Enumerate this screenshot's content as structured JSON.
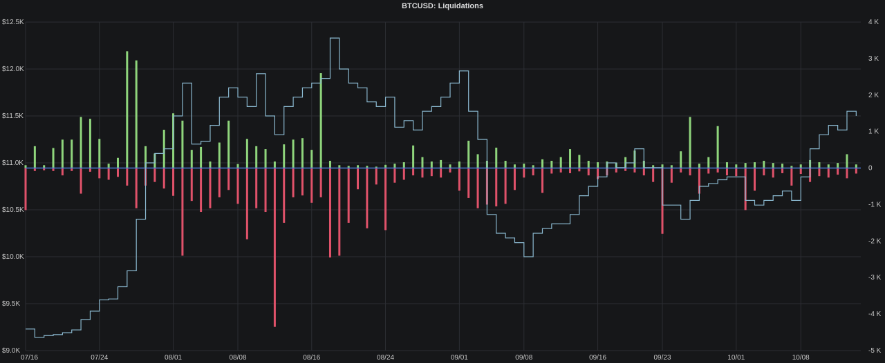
{
  "chart_data": {
    "type": "bar",
    "title": "BTCUSD: Liquidations",
    "x_tick_labels": [
      "07/16",
      "07/24",
      "08/01",
      "08/08",
      "08/16",
      "08/24",
      "09/01",
      "09/08",
      "09/16",
      "09/23",
      "10/01",
      "10/08"
    ],
    "y_left": {
      "range": [
        9000,
        12500
      ],
      "ticks": [
        9000,
        9500,
        10000,
        10500,
        11000,
        11500,
        12000,
        12500
      ],
      "tick_labels": [
        "$9.0K",
        "$9.5K",
        "$10.0K",
        "$10.5K",
        "$11.0K",
        "$11.5K",
        "$12.0K",
        "$12.5K"
      ]
    },
    "y_right": {
      "range": [
        -5000,
        4000
      ],
      "ticks": [
        -5000,
        -4000,
        -3000,
        -2000,
        -1000,
        0,
        1000,
        2000,
        3000,
        4000
      ],
      "tick_labels": [
        "-5 K",
        "-4 K",
        "-3 K",
        "-2 K",
        "-1 K",
        "0",
        "1 K",
        "2 K",
        "3 K",
        "4 K"
      ]
    },
    "grid": true,
    "colors": {
      "price": "#8ab8cf",
      "long": "#e0526a",
      "short": "#8fd57c",
      "baseline": "#4a78d6"
    },
    "series": [
      {
        "name": "",
        "axis": "left",
        "kind": "step-line",
        "color": "#8ab8cf",
        "points": [
          [
            "07/16",
            9230
          ],
          [
            "07/17",
            9140
          ],
          [
            "07/18",
            9160
          ],
          [
            "07/19",
            9170
          ],
          [
            "07/20",
            9190
          ],
          [
            "07/21",
            9220
          ],
          [
            "07/22",
            9330
          ],
          [
            "07/23",
            9420
          ],
          [
            "07/24",
            9540
          ],
          [
            "07/25",
            9550
          ],
          [
            "07/26",
            9680
          ],
          [
            "07/27",
            9850
          ],
          [
            "07/28",
            10400
          ],
          [
            "07/29",
            11000
          ],
          [
            "07/30",
            11100
          ],
          [
            "07/31",
            11150
          ],
          [
            "08/01",
            11500
          ],
          [
            "08/02",
            11850
          ],
          [
            "08/03",
            11200
          ],
          [
            "08/04",
            11230
          ],
          [
            "08/05",
            11400
          ],
          [
            "08/06",
            11700
          ],
          [
            "08/07",
            11800
          ],
          [
            "08/08",
            11700
          ],
          [
            "08/09",
            11600
          ],
          [
            "08/10",
            11950
          ],
          [
            "08/11",
            11500
          ],
          [
            "08/12",
            11300
          ],
          [
            "08/13",
            11600
          ],
          [
            "08/14",
            11700
          ],
          [
            "08/15",
            11800
          ],
          [
            "08/16",
            11850
          ],
          [
            "08/17",
            11900
          ],
          [
            "08/18",
            12330
          ],
          [
            "08/19",
            12000
          ],
          [
            "08/20",
            11850
          ],
          [
            "08/21",
            11800
          ],
          [
            "08/22",
            11650
          ],
          [
            "08/23",
            11600
          ],
          [
            "08/24",
            11700
          ],
          [
            "08/25",
            11380
          ],
          [
            "08/26",
            11450
          ],
          [
            "08/27",
            11350
          ],
          [
            "08/28",
            11550
          ],
          [
            "08/29",
            11600
          ],
          [
            "08/30",
            11700
          ],
          [
            "08/31",
            11850
          ],
          [
            "09/01",
            11980
          ],
          [
            "09/02",
            11550
          ],
          [
            "09/03",
            11250
          ],
          [
            "09/04",
            10450
          ],
          [
            "09/05",
            10250
          ],
          [
            "09/06",
            10200
          ],
          [
            "09/07",
            10150
          ],
          [
            "09/08",
            10000
          ],
          [
            "09/09",
            10250
          ],
          [
            "09/10",
            10300
          ],
          [
            "09/11",
            10350
          ],
          [
            "09/12",
            10350
          ],
          [
            "09/13",
            10450
          ],
          [
            "09/14",
            10650
          ],
          [
            "09/15",
            10750
          ],
          [
            "09/16",
            10850
          ],
          [
            "09/17",
            11000
          ],
          [
            "09/18",
            10950
          ],
          [
            "09/19",
            11000
          ],
          [
            "09/20",
            11150
          ],
          [
            "09/21",
            10950
          ],
          [
            "09/22",
            10950
          ],
          [
            "09/23",
            10550
          ],
          [
            "09/24",
            10550
          ],
          [
            "09/25",
            10400
          ],
          [
            "09/26",
            10600
          ],
          [
            "09/27",
            10750
          ],
          [
            "09/28",
            10780
          ],
          [
            "09/29",
            10820
          ],
          [
            "09/30",
            10850
          ],
          [
            "10/01",
            10850
          ],
          [
            "10/02",
            10600
          ],
          [
            "10/03",
            10550
          ],
          [
            "10/04",
            10600
          ],
          [
            "10/05",
            10650
          ],
          [
            "10/06",
            10700
          ],
          [
            "10/07",
            10600
          ],
          [
            "10/08",
            10850
          ],
          [
            "10/09",
            11150
          ],
          [
            "10/10",
            11300
          ],
          [
            "10/11",
            11400
          ],
          [
            "10/12",
            11350
          ],
          [
            "10/13",
            11550
          ],
          [
            "10/14",
            11500
          ]
        ]
      },
      {
        "name": "",
        "axis": "right",
        "kind": "bars",
        "color": "#8fd57c",
        "points": [
          [
            "07/16",
            80
          ],
          [
            "07/17",
            600
          ],
          [
            "07/18",
            80
          ],
          [
            "07/19",
            550
          ],
          [
            "07/20",
            780
          ],
          [
            "07/21",
            780
          ],
          [
            "07/22",
            1400
          ],
          [
            "07/23",
            1350
          ],
          [
            "07/24",
            800
          ],
          [
            "07/25",
            120
          ],
          [
            "07/26",
            280
          ],
          [
            "07/27",
            3200
          ],
          [
            "07/28",
            2950
          ],
          [
            "07/29",
            600
          ],
          [
            "07/30",
            400
          ],
          [
            "07/31",
            1050
          ],
          [
            "08/01",
            1500
          ],
          [
            "08/02",
            1300
          ],
          [
            "08/03",
            500
          ],
          [
            "08/04",
            580
          ],
          [
            "08/05",
            180
          ],
          [
            "08/06",
            700
          ],
          [
            "08/07",
            1300
          ],
          [
            "08/08",
            110
          ],
          [
            "08/09",
            800
          ],
          [
            "08/10",
            600
          ],
          [
            "08/11",
            520
          ],
          [
            "08/12",
            180
          ],
          [
            "08/13",
            650
          ],
          [
            "08/14",
            780
          ],
          [
            "08/15",
            820
          ],
          [
            "08/16",
            500
          ],
          [
            "08/17",
            2600
          ],
          [
            "08/18",
            200
          ],
          [
            "08/19",
            80
          ],
          [
            "08/20",
            60
          ],
          [
            "08/21",
            80
          ],
          [
            "08/22",
            60
          ],
          [
            "08/23",
            40
          ],
          [
            "08/24",
            90
          ],
          [
            "08/25",
            120
          ],
          [
            "08/26",
            160
          ],
          [
            "08/27",
            620
          ],
          [
            "08/28",
            300
          ],
          [
            "08/29",
            180
          ],
          [
            "08/30",
            220
          ],
          [
            "08/31",
            100
          ],
          [
            "09/01",
            180
          ],
          [
            "09/02",
            750
          ],
          [
            "09/03",
            380
          ],
          [
            "09/04",
            200
          ],
          [
            "09/05",
            560
          ],
          [
            "09/06",
            200
          ],
          [
            "09/07",
            100
          ],
          [
            "09/08",
            120
          ],
          [
            "09/09",
            80
          ],
          [
            "09/10",
            240
          ],
          [
            "09/11",
            200
          ],
          [
            "09/12",
            300
          ],
          [
            "09/13",
            520
          ],
          [
            "09/14",
            360
          ],
          [
            "09/15",
            200
          ],
          [
            "09/16",
            160
          ],
          [
            "09/17",
            180
          ],
          [
            "09/18",
            150
          ],
          [
            "09/19",
            300
          ],
          [
            "09/20",
            480
          ],
          [
            "09/21",
            200
          ],
          [
            "09/22",
            80
          ],
          [
            "09/23",
            100
          ],
          [
            "09/24",
            80
          ],
          [
            "09/25",
            460
          ],
          [
            "09/26",
            1400
          ],
          [
            "09/27",
            120
          ],
          [
            "09/28",
            300
          ],
          [
            "09/29",
            1150
          ],
          [
            "09/30",
            160
          ],
          [
            "10/01",
            100
          ],
          [
            "10/02",
            140
          ],
          [
            "10/03",
            160
          ],
          [
            "10/04",
            200
          ],
          [
            "10/05",
            140
          ],
          [
            "10/06",
            120
          ],
          [
            "10/07",
            60
          ],
          [
            "10/08",
            100
          ],
          [
            "10/09",
            220
          ],
          [
            "10/10",
            160
          ],
          [
            "10/11",
            100
          ],
          [
            "10/12",
            140
          ],
          [
            "10/13",
            380
          ],
          [
            "10/14",
            100
          ]
        ]
      },
      {
        "name": "",
        "axis": "right",
        "kind": "bars",
        "color": "#e0526a",
        "points": [
          [
            "07/16",
            -1150
          ],
          [
            "07/17",
            -80
          ],
          [
            "07/18",
            -60
          ],
          [
            "07/19",
            -80
          ],
          [
            "07/20",
            -200
          ],
          [
            "07/21",
            -80
          ],
          [
            "07/22",
            -700
          ],
          [
            "07/23",
            -100
          ],
          [
            "07/24",
            -280
          ],
          [
            "07/25",
            -320
          ],
          [
            "07/26",
            -240
          ],
          [
            "07/27",
            -480
          ],
          [
            "07/28",
            -1100
          ],
          [
            "07/29",
            -480
          ],
          [
            "07/30",
            -380
          ],
          [
            "07/31",
            -560
          ],
          [
            "08/01",
            -760
          ],
          [
            "08/02",
            -2400
          ],
          [
            "08/03",
            -900
          ],
          [
            "08/04",
            -1200
          ],
          [
            "08/05",
            -1100
          ],
          [
            "08/06",
            -800
          ],
          [
            "08/07",
            -600
          ],
          [
            "08/08",
            -980
          ],
          [
            "08/09",
            -1950
          ],
          [
            "08/10",
            -1100
          ],
          [
            "08/11",
            -1200
          ],
          [
            "08/12",
            -4350
          ],
          [
            "08/13",
            -1500
          ],
          [
            "08/14",
            -800
          ],
          [
            "08/15",
            -750
          ],
          [
            "08/16",
            -950
          ],
          [
            "08/17",
            -800
          ],
          [
            "08/18",
            -2450
          ],
          [
            "08/19",
            -2400
          ],
          [
            "08/20",
            -1500
          ],
          [
            "08/21",
            -580
          ],
          [
            "08/22",
            -1650
          ],
          [
            "08/23",
            -450
          ],
          [
            "08/24",
            -1700
          ],
          [
            "08/25",
            -400
          ],
          [
            "08/26",
            -320
          ],
          [
            "08/27",
            -200
          ],
          [
            "08/28",
            -260
          ],
          [
            "08/29",
            -220
          ],
          [
            "08/30",
            -260
          ],
          [
            "08/31",
            -120
          ],
          [
            "09/01",
            -620
          ],
          [
            "09/02",
            -820
          ],
          [
            "09/03",
            -1100
          ],
          [
            "09/04",
            -1000
          ],
          [
            "09/05",
            -1050
          ],
          [
            "09/06",
            -980
          ],
          [
            "09/07",
            -600
          ],
          [
            "09/08",
            -260
          ],
          [
            "09/09",
            -200
          ],
          [
            "09/10",
            -680
          ],
          [
            "09/11",
            -150
          ],
          [
            "09/12",
            -120
          ],
          [
            "09/13",
            -140
          ],
          [
            "09/14",
            -90
          ],
          [
            "09/15",
            -200
          ],
          [
            "09/16",
            -300
          ],
          [
            "09/17",
            -200
          ],
          [
            "09/18",
            -120
          ],
          [
            "09/19",
            -80
          ],
          [
            "09/20",
            -120
          ],
          [
            "09/21",
            -200
          ],
          [
            "09/22",
            -380
          ],
          [
            "09/23",
            -1800
          ],
          [
            "09/24",
            -400
          ],
          [
            "09/25",
            -120
          ],
          [
            "09/26",
            -200
          ],
          [
            "09/27",
            -700
          ],
          [
            "09/28",
            -150
          ],
          [
            "09/29",
            -120
          ],
          [
            "09/30",
            -200
          ],
          [
            "10/01",
            -220
          ],
          [
            "10/02",
            -1150
          ],
          [
            "10/03",
            -620
          ],
          [
            "10/04",
            -200
          ],
          [
            "10/05",
            -260
          ],
          [
            "10/06",
            -140
          ],
          [
            "10/07",
            -480
          ],
          [
            "10/08",
            -160
          ],
          [
            "10/09",
            -380
          ],
          [
            "10/10",
            -220
          ],
          [
            "10/11",
            -260
          ],
          [
            "10/12",
            -180
          ],
          [
            "10/13",
            -280
          ],
          [
            "10/14",
            -150
          ]
        ]
      }
    ]
  }
}
